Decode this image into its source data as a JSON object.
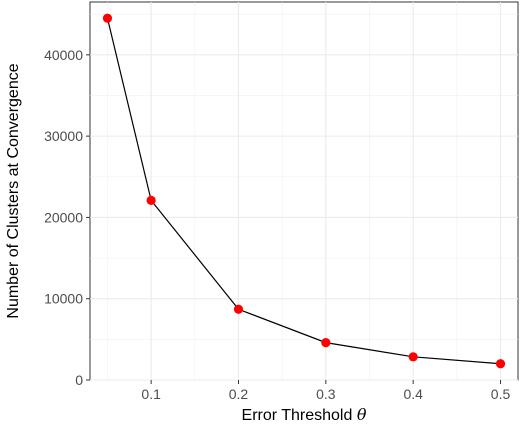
{
  "chart_data": {
    "type": "line",
    "title": "",
    "xlabel": "Error Threshold",
    "xlabel_symbol": "θ",
    "ylabel": "Number of Clusters at Convergence",
    "x": [
      0.05,
      0.1,
      0.2,
      0.3,
      0.4,
      0.5
    ],
    "y": [
      44500,
      22100,
      8700,
      4600,
      2850,
      2000
    ],
    "xlim": [
      0.03,
      0.52
    ],
    "ylim": [
      0,
      46500
    ],
    "x_ticks": [
      0.1,
      0.2,
      0.3,
      0.4,
      0.5
    ],
    "x_tick_labels": [
      "0.1",
      "0.2",
      "0.3",
      "0.4",
      "0.5"
    ],
    "y_ticks": [
      0,
      10000,
      20000,
      30000,
      40000
    ],
    "y_tick_labels": [
      "0",
      "10000",
      "20000",
      "30000",
      "40000"
    ],
    "grid": true,
    "legend": "none",
    "line_color": "#000000",
    "point_color": "#ff0000"
  }
}
